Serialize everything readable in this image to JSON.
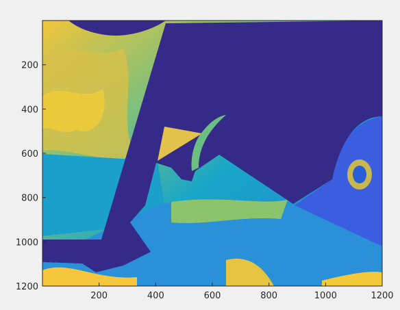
{
  "chart_data": {
    "type": "image",
    "xlim": [
      0,
      1200
    ],
    "ylim": [
      0,
      1200
    ],
    "reverse_y": true,
    "xticks": [
      200,
      400,
      600,
      800,
      1000,
      1200
    ],
    "yticks": [
      200,
      400,
      600,
      800,
      1000,
      1200
    ],
    "colormap": [
      "#352a87",
      "#0f5cdd",
      "#1481d6",
      "#06a4ca",
      "#2eb7a4",
      "#87bf77",
      "#d1bb59",
      "#fec832",
      "#f9fb0e"
    ]
  }
}
